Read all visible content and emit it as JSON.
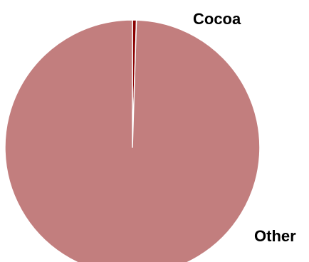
{
  "chart_data": {
    "type": "pie",
    "slices": [
      {
        "label": "Cocoa",
        "value": 0.5,
        "color": "#8b0000"
      },
      {
        "label": "Other",
        "value": 99.5,
        "color": "#c27e7e"
      }
    ],
    "slice_border_color": "#ffffff",
    "start_angle_deg": 0,
    "direction": "clockwise",
    "label_placement": "outside"
  }
}
